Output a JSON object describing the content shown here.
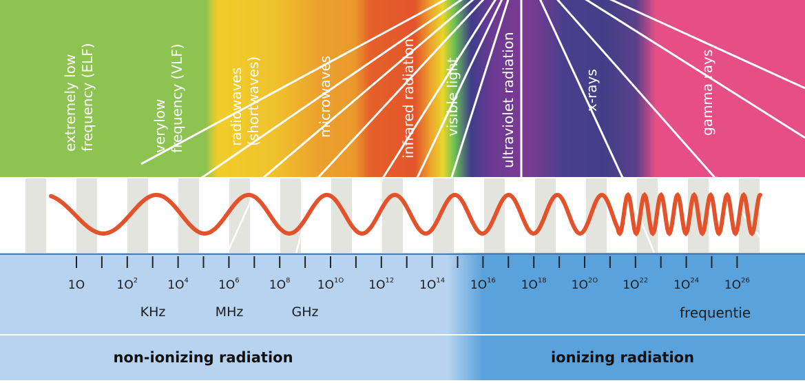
{
  "spectrum_bands": [
    {
      "key": "elf",
      "label": "extremely low\nfrequency (ELF)"
    },
    {
      "key": "vlf",
      "label": "verylow\nfrequency (VLF)"
    },
    {
      "key": "radio",
      "label": "radiowaves\n(shortwaves)"
    },
    {
      "key": "microwaves",
      "label": "microwaves"
    },
    {
      "key": "infrared",
      "label": "infrared radiation"
    },
    {
      "key": "visible",
      "label": "visible light"
    },
    {
      "key": "uv",
      "label": "ultraviolet radiation"
    },
    {
      "key": "xrays",
      "label": "x-rays"
    },
    {
      "key": "gamma",
      "label": "gamma rays"
    }
  ],
  "frequency_scale": {
    "base": "1O",
    "ticks": [
      {
        "label": "1O",
        "exp": ""
      },
      {
        "label": "1O",
        "exp": "2"
      },
      {
        "label": "1O",
        "exp": "4"
      },
      {
        "label": "1O",
        "exp": "6"
      },
      {
        "label": "1O",
        "exp": "8"
      },
      {
        "label": "1O",
        "exp": "1O"
      },
      {
        "label": "1O",
        "exp": "12"
      },
      {
        "label": "1O",
        "exp": "14"
      },
      {
        "label": "1O",
        "exp": "16"
      },
      {
        "label": "1O",
        "exp": "18"
      },
      {
        "label": "1O",
        "exp": "2O"
      },
      {
        "label": "1O",
        "exp": "22"
      },
      {
        "label": "1O",
        "exp": "24"
      },
      {
        "label": "1O",
        "exp": "26"
      }
    ],
    "units": [
      "KHz",
      "MHz",
      "GHz"
    ],
    "axis_title": "frequentie"
  },
  "footer": {
    "non_ionizing": "non-ionizing radiation",
    "ionizing": "ionizing radiation"
  },
  "colors": {
    "elf_green": "#8dc350",
    "radio_yellow": "#f0c92c",
    "microwave_orange": "#eb9a2c",
    "infrared_red": "#e4562a",
    "violet": "#5a3a8f",
    "indigo": "#413c87",
    "gamma_pink": "#e54f86",
    "wave_orange": "#e3532b",
    "axis_light_blue": "#b8d3ef",
    "axis_dark_blue": "#5aa2db"
  }
}
